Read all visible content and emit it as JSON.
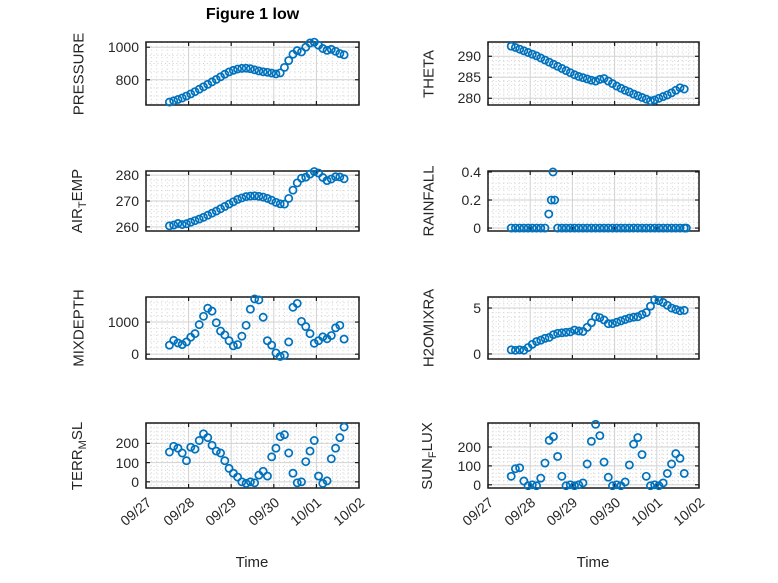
{
  "figure": {
    "title": "Figure 1 low",
    "xlabel": "Time",
    "x_tick_labels": [
      "09/27",
      "09/28",
      "09/29",
      "09/30",
      "10/01",
      "10/02"
    ],
    "x_tick_days": [
      0,
      1,
      2,
      3,
      4,
      5
    ],
    "xlim": [
      0,
      5
    ],
    "x_minor_step": 0.125,
    "colors": {
      "marker": "#0072BD",
      "axis": "#1a1a1a",
      "grid_major": "#d2d2d2",
      "grid_minor": "#d2d2d2",
      "text": "#262626"
    },
    "x_days": [
      0.55,
      0.65,
      0.75,
      0.85,
      0.95,
      1.05,
      1.15,
      1.25,
      1.35,
      1.45,
      1.55,
      1.65,
      1.75,
      1.85,
      1.95,
      2.05,
      2.15,
      2.25,
      2.35,
      2.45,
      2.55,
      2.65,
      2.75,
      2.85,
      2.95,
      3.05,
      3.15,
      3.25,
      3.35,
      3.45,
      3.55,
      3.65,
      3.75,
      3.85,
      3.95,
      4.05,
      4.15,
      4.25,
      4.35,
      4.45,
      4.55,
      4.65
    ]
  },
  "chart_data": [
    {
      "id": "pressure",
      "type": "scatter",
      "ylabel": "PRESSURE",
      "ylabel_parts": [
        {
          "text": "PRESSURE",
          "sub": false
        }
      ],
      "yticks": [
        800,
        1000
      ],
      "yticklabels": [
        "800",
        "1000"
      ],
      "ylim": [
        645,
        1032
      ],
      "y_minor_step": 50,
      "y": [
        663,
        671,
        679,
        688,
        700,
        713,
        727,
        742,
        757,
        772,
        787,
        802,
        818,
        834,
        848,
        858,
        866,
        870,
        871,
        868,
        861,
        854,
        849,
        846,
        841,
        836,
        842,
        876,
        918,
        957,
        979,
        971,
        1000,
        1026,
        1031,
        1012,
        992,
        981,
        987,
        975,
        961,
        953
      ]
    },
    {
      "id": "theta",
      "type": "scatter",
      "ylabel": "THETA",
      "ylabel_parts": [
        {
          "text": "THETA",
          "sub": false
        }
      ],
      "yticks": [
        280,
        285,
        290
      ],
      "yticklabels": [
        "280",
        "285",
        "290"
      ],
      "ylim": [
        278.4,
        293.4
      ],
      "y_minor_step": 1,
      "y": [
        292.4,
        292.1,
        291.7,
        291.3,
        290.9,
        290.5,
        290.1,
        289.6,
        289.1,
        288.6,
        288.1,
        287.6,
        287.1,
        286.6,
        286.1,
        285.6,
        285.2,
        284.9,
        284.6,
        284.3,
        284.1,
        284.5,
        284.7,
        284.1,
        283.5,
        282.9,
        282.4,
        281.9,
        281.5,
        281.0,
        280.6,
        280.2,
        279.8,
        279.4,
        279.6,
        280.0,
        280.4,
        280.8,
        281.3,
        281.9,
        282.5,
        282.2
      ]
    },
    {
      "id": "air-temp",
      "type": "scatter",
      "ylabel": "AIR_TEMP",
      "ylabel_parts": [
        {
          "text": "AIR",
          "sub": false
        },
        {
          "text": "T",
          "sub": true
        },
        {
          "text": "EMP",
          "sub": false
        }
      ],
      "yticks": [
        260,
        270,
        280
      ],
      "yticklabels": [
        "260",
        "270",
        "280"
      ],
      "ylim": [
        258.4,
        281.6
      ],
      "y_minor_step": 2,
      "y": [
        260.4,
        260.7,
        261.3,
        260.9,
        261.2,
        261.8,
        262.4,
        263.0,
        263.7,
        264.5,
        265.3,
        266.1,
        267.0,
        267.9,
        268.8,
        269.7,
        270.6,
        271.2,
        271.7,
        271.9,
        272.0,
        271.8,
        271.5,
        271.0,
        270.3,
        269.5,
        268.9,
        268.8,
        271.0,
        274.2,
        277.0,
        278.8,
        279.2,
        280.4,
        281.4,
        280.8,
        279.1,
        277.9,
        278.5,
        279.4,
        279.3,
        278.6
      ]
    },
    {
      "id": "rainfall",
      "type": "scatter",
      "ylabel": "RAINFALL",
      "ylabel_parts": [
        {
          "text": "RAINFALL",
          "sub": false
        }
      ],
      "yticks": [
        0,
        0.2,
        0.4
      ],
      "yticklabels": [
        "0",
        "0.2",
        "0.4"
      ],
      "ylim": [
        -0.021,
        0.407
      ],
      "y_minor_step": 0.04,
      "x": [
        0.55,
        0.65,
        0.75,
        0.85,
        0.95,
        1.05,
        1.15,
        1.25,
        1.35,
        1.44,
        1.5,
        1.54,
        1.58,
        1.65,
        1.75,
        1.85,
        1.95,
        2.05,
        2.15,
        2.25,
        2.35,
        2.45,
        2.55,
        2.65,
        2.75,
        2.85,
        2.95,
        3.05,
        3.15,
        3.25,
        3.35,
        3.45,
        3.55,
        3.65,
        3.75,
        3.85,
        3.95,
        4.05,
        4.15,
        4.25,
        4.35,
        4.45,
        4.55,
        4.65,
        4.7
      ],
      "y": [
        0,
        0,
        0,
        0,
        0,
        0,
        0,
        0,
        0,
        0.1,
        0.2,
        0.4,
        0.2,
        0,
        0,
        0,
        0,
        0,
        0,
        0,
        0,
        0,
        0,
        0,
        0,
        0,
        0,
        0,
        0,
        0,
        0,
        0,
        0,
        0,
        0,
        0,
        0,
        0,
        0,
        0,
        0,
        0,
        0,
        0,
        0
      ]
    },
    {
      "id": "mixdepth",
      "type": "scatter",
      "ylabel": "MIXDEPTH",
      "ylabel_parts": [
        {
          "text": "MIXDEPTH",
          "sub": false
        }
      ],
      "yticks": [
        0,
        1000
      ],
      "yticklabels": [
        "0",
        "1000"
      ],
      "ylim": [
        -150,
        1780
      ],
      "y_minor_step": 200,
      "y": [
        280,
        430,
        350,
        300,
        380,
        530,
        640,
        920,
        1180,
        1430,
        1340,
        980,
        720,
        600,
        420,
        260,
        300,
        560,
        900,
        1400,
        1720,
        1690,
        1150,
        420,
        280,
        40,
        -70,
        -30,
        380,
        1460,
        1580,
        1020,
        860,
        640,
        340,
        420,
        540,
        480,
        580,
        820,
        900,
        470
      ]
    },
    {
      "id": "h2omixra",
      "type": "scatter",
      "ylabel": "H2OMIXRA",
      "ylabel_parts": [
        {
          "text": "H2OMIXRA",
          "sub": false
        }
      ],
      "yticks": [
        0,
        5
      ],
      "yticklabels": [
        "0",
        "5"
      ],
      "ylim": [
        -0.55,
        6.2
      ],
      "y_minor_step": 0.5,
      "y": [
        0.45,
        0.4,
        0.45,
        0.4,
        0.7,
        1.05,
        1.35,
        1.5,
        1.7,
        1.8,
        2.1,
        2.25,
        2.3,
        2.35,
        2.4,
        2.6,
        2.5,
        2.45,
        2.9,
        3.4,
        4.05,
        3.95,
        3.7,
        3.3,
        3.3,
        3.45,
        3.6,
        3.75,
        3.9,
        4.0,
        4.05,
        4.3,
        4.5,
        5.2,
        5.9,
        5.8,
        5.6,
        5.3,
        5.0,
        4.85,
        4.7,
        4.75
      ]
    },
    {
      "id": "terr-msl",
      "type": "scatter",
      "ylabel": "TERR_MSL",
      "ylabel_parts": [
        {
          "text": "TERR",
          "sub": false
        },
        {
          "text": "M",
          "sub": true
        },
        {
          "text": "SL",
          "sub": false
        }
      ],
      "yticks": [
        0,
        100,
        200
      ],
      "yticklabels": [
        "0",
        "100",
        "200"
      ],
      "ylim": [
        -32,
        306
      ],
      "y_minor_step": 20,
      "y": [
        155,
        185,
        175,
        150,
        110,
        180,
        170,
        215,
        250,
        230,
        190,
        160,
        150,
        110,
        70,
        45,
        25,
        0,
        -8,
        0,
        -5,
        35,
        55,
        30,
        130,
        175,
        235,
        245,
        150,
        45,
        -5,
        0,
        105,
        160,
        215,
        30,
        -8,
        5,
        120,
        175,
        230,
        285
      ]
    },
    {
      "id": "sun-flux",
      "type": "scatter",
      "ylabel": "SUN_FLUX",
      "ylabel_parts": [
        {
          "text": "SUN",
          "sub": false
        },
        {
          "text": "F",
          "sub": true
        },
        {
          "text": "LUX",
          "sub": false
        }
      ],
      "yticks": [
        0,
        100,
        200
      ],
      "yticklabels": [
        "0",
        "100",
        "200"
      ],
      "ylim": [
        -17,
        327
      ],
      "y_minor_step": 20,
      "y": [
        45,
        85,
        90,
        20,
        -5,
        0,
        -5,
        35,
        115,
        235,
        255,
        150,
        45,
        -5,
        0,
        -5,
        0,
        10,
        110,
        230,
        320,
        260,
        120,
        40,
        -5,
        0,
        -5,
        15,
        105,
        215,
        250,
        160,
        45,
        -5,
        0,
        -5,
        10,
        60,
        110,
        165,
        140,
        60
      ]
    }
  ]
}
